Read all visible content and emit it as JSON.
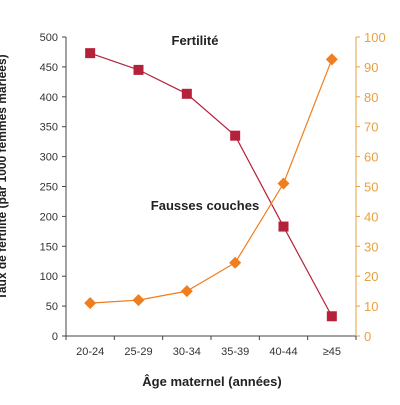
{
  "chart_data": {
    "type": "line",
    "xlabel": "Âge maternel (années)",
    "ylabel_left": "Taux de fertilité (par 1000 femmes mariées)",
    "ylabel_right": "",
    "categories": [
      "20-24",
      "25-29",
      "30-34",
      "35-39",
      "40-44",
      "≥45"
    ],
    "ylim_left": [
      0,
      500
    ],
    "ylim_right": [
      0,
      100
    ],
    "yticks_left": [
      "0",
      "50",
      "100",
      "150",
      "200",
      "250",
      "300",
      "350",
      "400",
      "450",
      "500"
    ],
    "yticks_right": [
      "0",
      "10",
      "20",
      "30",
      "40",
      "50",
      "60",
      "70",
      "80",
      "90",
      "100"
    ],
    "grid": false,
    "series": [
      {
        "name": "Fertilité",
        "axis": "left",
        "marker": "square",
        "color": "#b5203a",
        "values": [
          473,
          445,
          405,
          335,
          183,
          33
        ]
      },
      {
        "name": "Fausses couches",
        "axis": "right",
        "marker": "diamond",
        "color": "#f07d1e",
        "values": [
          11,
          12,
          15,
          24.5,
          51,
          92.5
        ]
      }
    ],
    "colors": {
      "left_axis": "#333333",
      "right_axis": "#e8a040"
    }
  }
}
